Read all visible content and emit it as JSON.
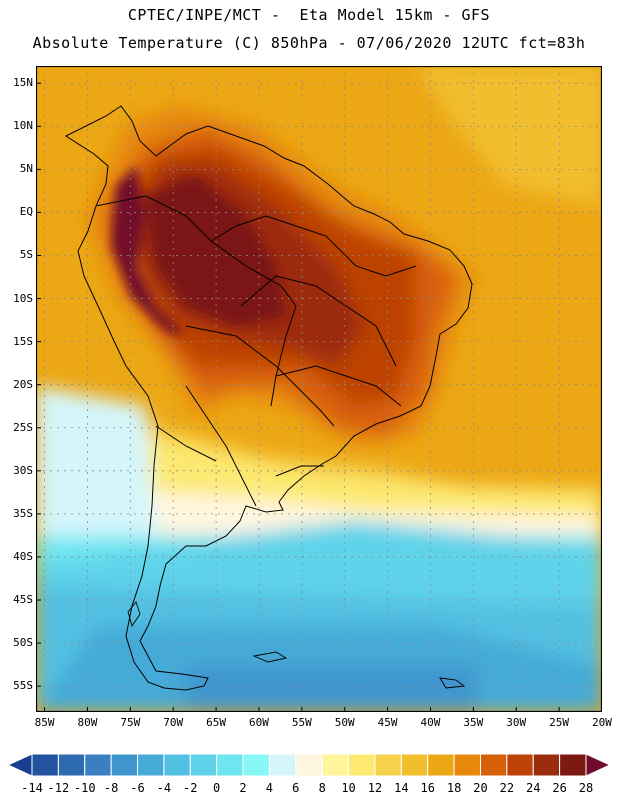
{
  "title": {
    "line1": "CPTEC/INPE/MCT -  Eta Model 15km - GFS",
    "line2": "Absolute Temperature (C) 850hPa - 07/06/2020 12UTC fct=83h"
  },
  "map": {
    "lon_range": [
      -86,
      -20
    ],
    "lat_range": [
      -58,
      17
    ],
    "y_axis_labels": [
      "15N",
      "10N",
      "5N",
      "EQ",
      "5S",
      "10S",
      "15S",
      "20S",
      "25S",
      "30S",
      "35S",
      "40S",
      "45S",
      "50S",
      "55S"
    ],
    "x_axis_labels": [
      "85W",
      "80W",
      "75W",
      "70W",
      "65W",
      "60W",
      "55W",
      "50W",
      "45W",
      "40W",
      "35W",
      "30W",
      "25W",
      "20W"
    ],
    "field": "temperature 850hPa",
    "units": "C"
  },
  "legend": {
    "values": [
      "-14",
      "-12",
      "-10",
      "-8",
      "-6",
      "-4",
      "-2",
      "0",
      "2",
      "4",
      "6",
      "8",
      "10",
      "12",
      "14",
      "16",
      "18",
      "20",
      "22",
      "24",
      "26",
      "28"
    ],
    "colors": [
      "#1a3d8f",
      "#2353a0",
      "#2e6ab0",
      "#3a7fc0",
      "#3f96cf",
      "#45aad8",
      "#52c0e2",
      "#5fd3ea",
      "#6ee6f0",
      "#8af7f7",
      "#d4f6fb",
      "#fff6e0",
      "#fff59a",
      "#fde971",
      "#f6d24b",
      "#f1be2e",
      "#eca714",
      "#e7870c",
      "#d85f0a",
      "#bd4205",
      "#9c2c0e",
      "#7b1912",
      "#720b2b"
    ]
  }
}
